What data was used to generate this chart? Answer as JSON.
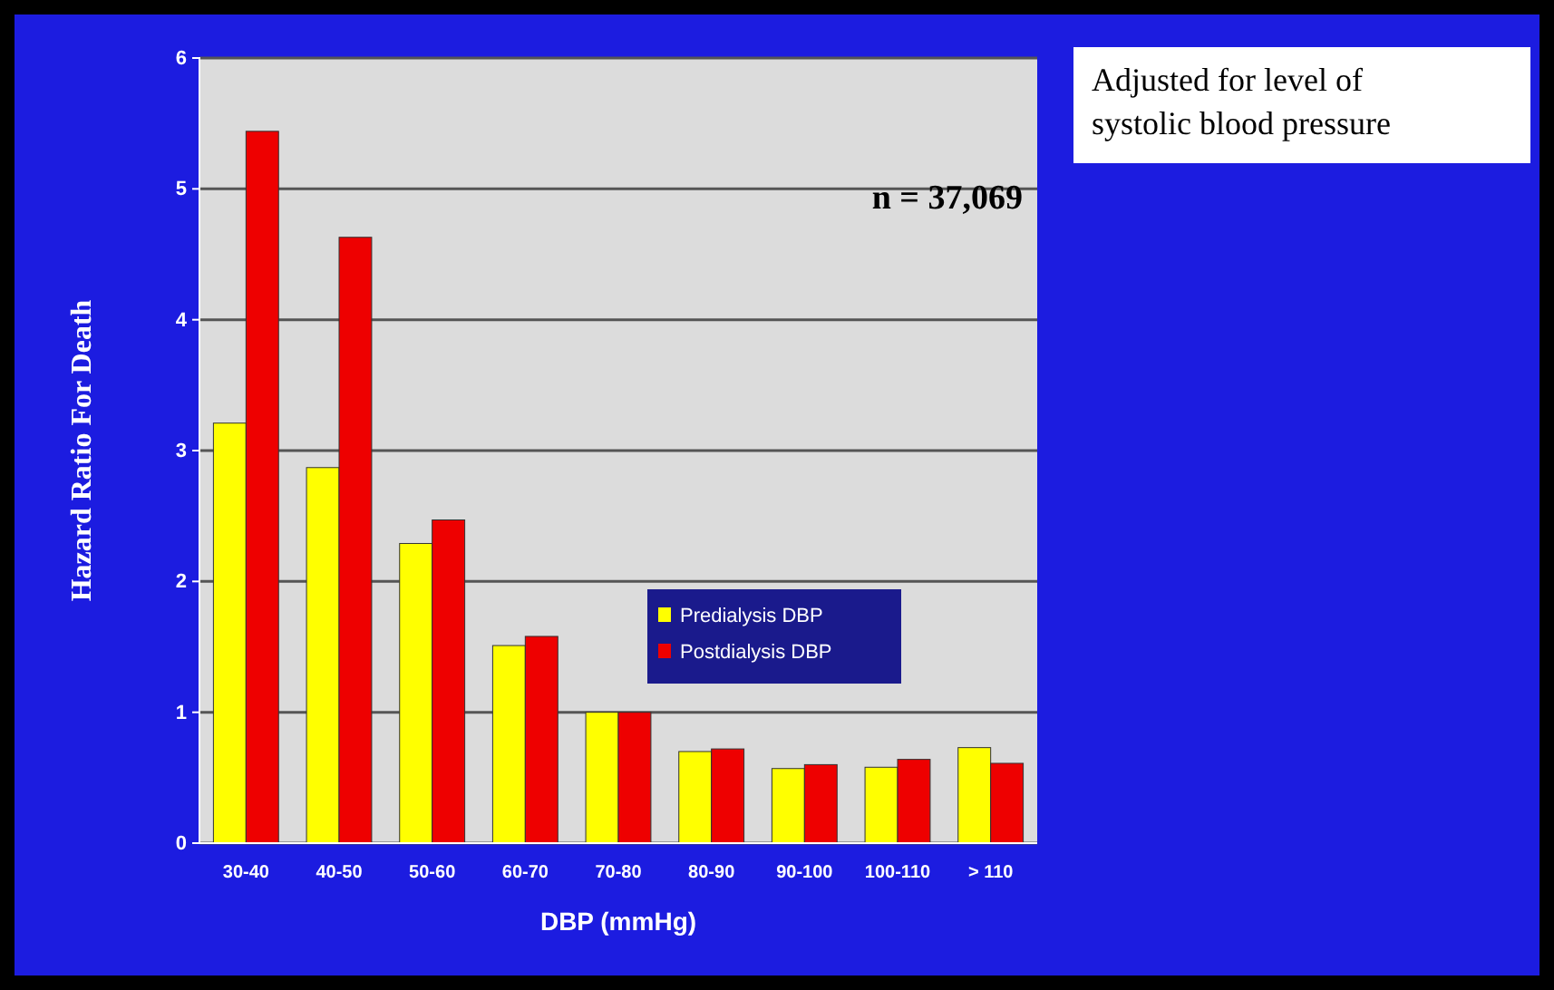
{
  "chart_data": {
    "type": "bar",
    "xlabel": "DBP (mmHg)",
    "ylabel": "Hazard Ratio For Death",
    "categories": [
      "30-40",
      "40-50",
      "50-60",
      "60-70",
      "70-80",
      "80-90",
      "90-100",
      "100-110",
      "> 110"
    ],
    "series": [
      {
        "name": "Predialysis DBP",
        "color": "#ffff00",
        "values": [
          3.21,
          2.87,
          2.29,
          1.51,
          1.0,
          0.7,
          0.57,
          0.58,
          0.73
        ]
      },
      {
        "name": "Postdialysis DBP",
        "color": "#ee0000",
        "values": [
          5.44,
          4.63,
          2.47,
          1.58,
          1.0,
          0.72,
          0.6,
          0.64,
          0.61
        ]
      }
    ],
    "ylim": [
      0,
      6
    ],
    "yticks": [
      0,
      1,
      2,
      3,
      4,
      5,
      6
    ],
    "grid": "y",
    "legend": "right",
    "annotations": [
      "n = 37,069",
      "Adjusted for level of systolic blood pressure"
    ]
  }
}
